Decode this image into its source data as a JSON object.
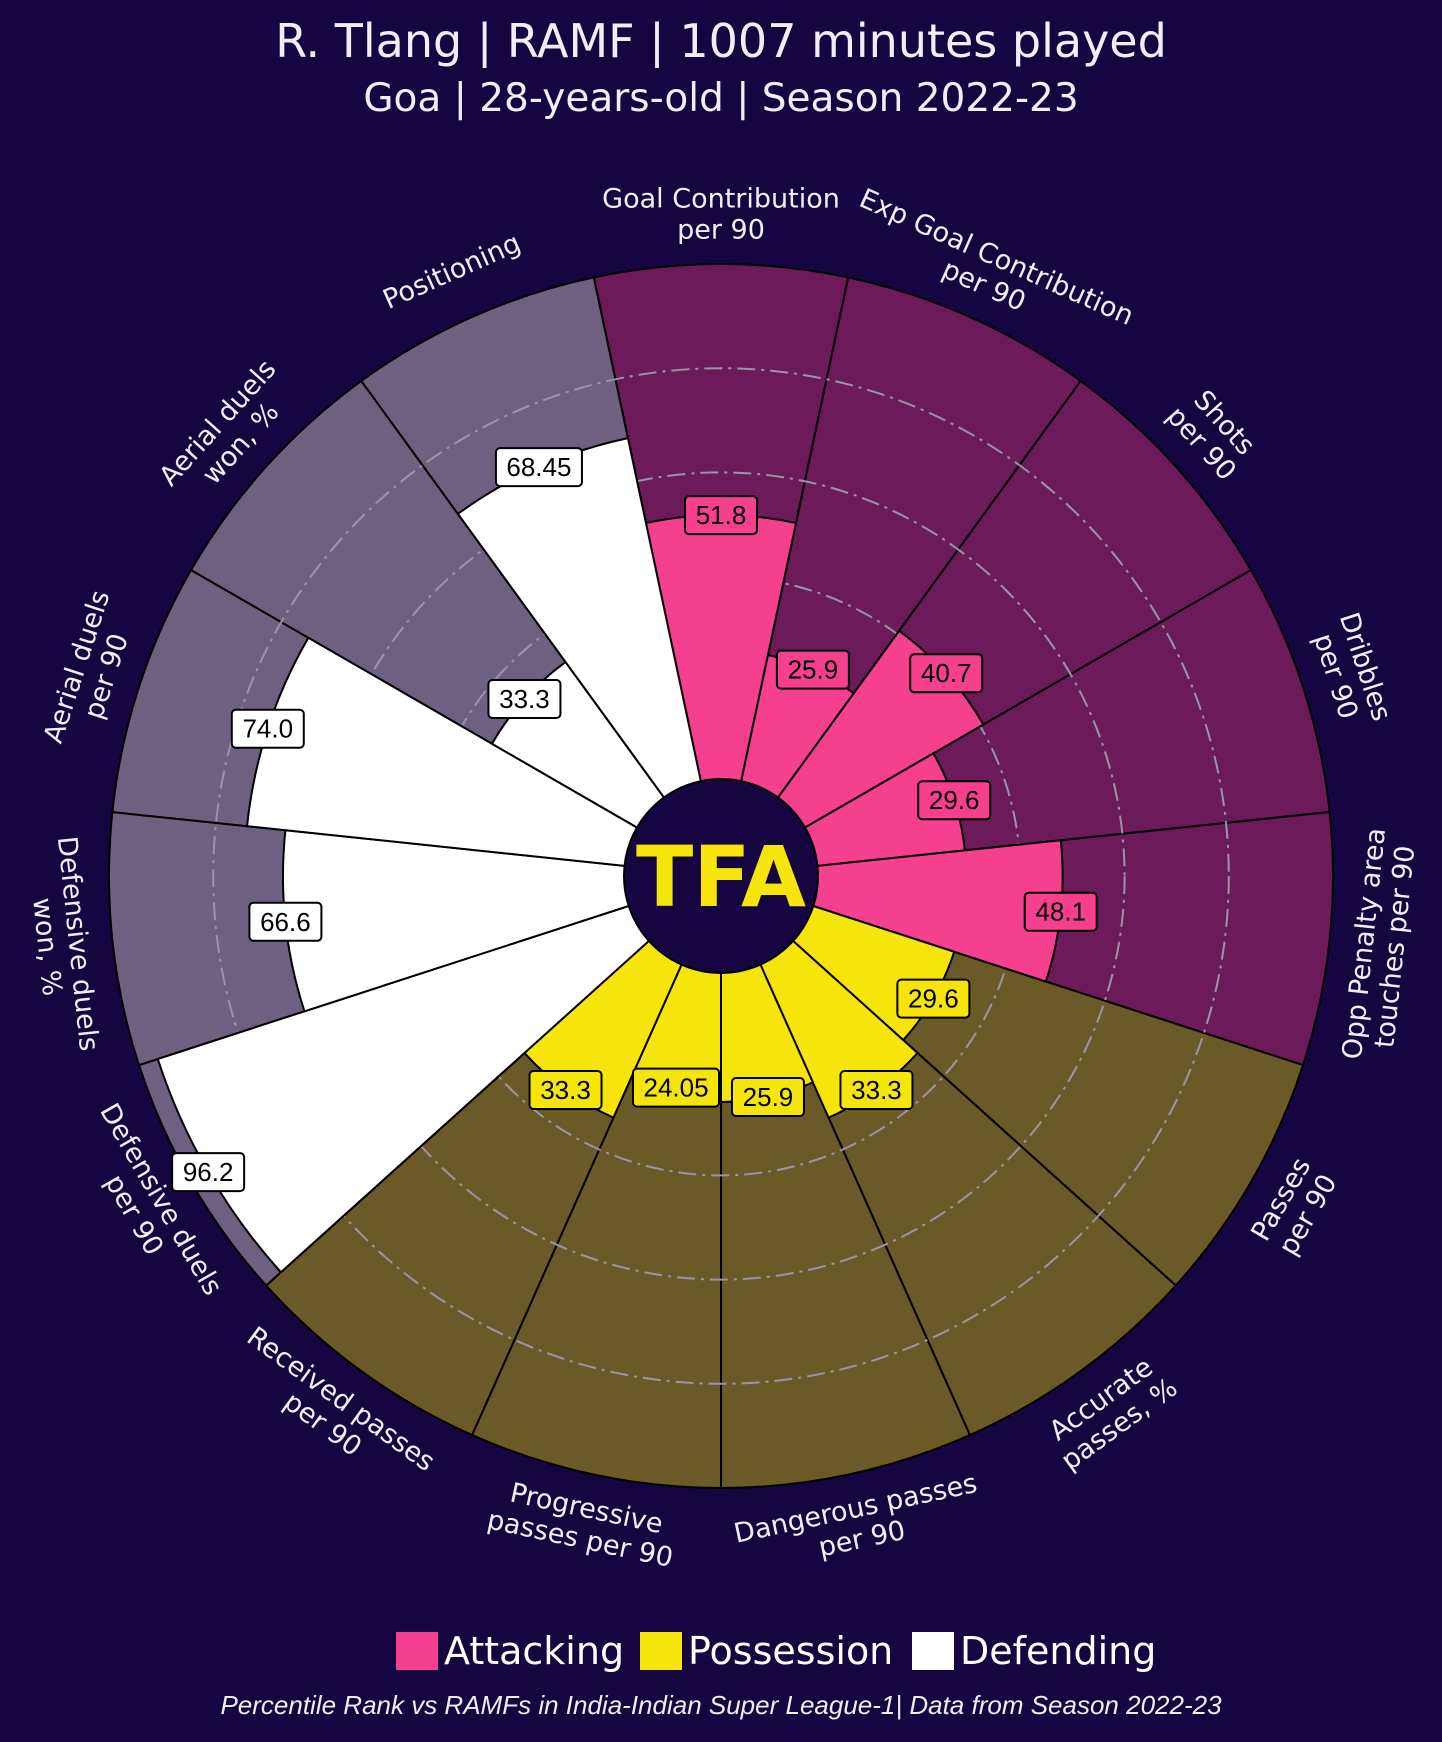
{
  "title": "R. Tlang | RAMF | 1007 minutes played",
  "subtitle": "Goa | 28-years-old | Season 2022-23",
  "logo_text": "TFA",
  "footnote": "Percentile Rank vs RAMFs in India-Indian Super League-1| Data from Season 2022-23",
  "colors": {
    "background": "#150641",
    "attacking_fill": "#f53f8f",
    "attacking_bg": "#6c1a5a",
    "possession_fill": "#f5e50a",
    "possession_bg": "#6b5a28",
    "defending_fill": "#ffffff",
    "defending_bg": "#6e6080",
    "logo": "#f5e50a"
  },
  "chart_data": {
    "type": "pizza",
    "title": "R. Tlang | RAMF | 1007 minutes played",
    "value_range": [
      0,
      100
    ],
    "gridlines": [
      20,
      40,
      60,
      80
    ],
    "legend": [
      {
        "label": "Attacking",
        "group": "attacking"
      },
      {
        "label": "Possession",
        "group": "possession"
      },
      {
        "label": "Defending",
        "group": "defending"
      }
    ],
    "legend_placement": "bottom",
    "params": [
      {
        "label": "Goal Contribution\nper 90",
        "value": 51.8,
        "display": "51.8",
        "group": "attacking"
      },
      {
        "label": "Exp Goal Contribution\nper 90",
        "value": 25.9,
        "display": "25.9",
        "group": "attacking"
      },
      {
        "label": "Shots\nper 90",
        "value": 40.7,
        "display": "40.7",
        "group": "attacking"
      },
      {
        "label": "Dribbles\nper 90",
        "value": 29.6,
        "display": "29.6",
        "group": "attacking"
      },
      {
        "label": "Opp Penalty area\ntouches per 90",
        "value": 48.1,
        "display": "48.1",
        "group": "attacking"
      },
      {
        "label": "Passes\nper 90",
        "value": 29.6,
        "display": "29.6",
        "group": "possession"
      },
      {
        "label": "Accurate\npasses, %",
        "value": 33.3,
        "display": "33.3",
        "group": "possession"
      },
      {
        "label": "Dangerous passes\nper 90",
        "value": 25.9,
        "display": "25.9",
        "group": "possession"
      },
      {
        "label": "Progressive\npasses per 90",
        "value": 24.05,
        "display": "24.05",
        "group": "possession"
      },
      {
        "label": "Received passes\nper 90",
        "value": 33.3,
        "display": "33.3",
        "group": "possession"
      },
      {
        "label": "Defensive duels\nper 90",
        "value": 96.2,
        "display": "96.2",
        "group": "defending"
      },
      {
        "label": "Defensive duels\nwon, %",
        "value": 66.6,
        "display": "66.6",
        "group": "defending"
      },
      {
        "label": "Aerial duels\nper 90",
        "value": 74.0,
        "display": "74.0",
        "group": "defending"
      },
      {
        "label": "Aerial duels\nwon, %",
        "value": 33.3,
        "display": "33.3",
        "group": "defending"
      },
      {
        "label": "Positioning",
        "value": 68.45,
        "display": "68.45",
        "group": "defending"
      }
    ]
  }
}
